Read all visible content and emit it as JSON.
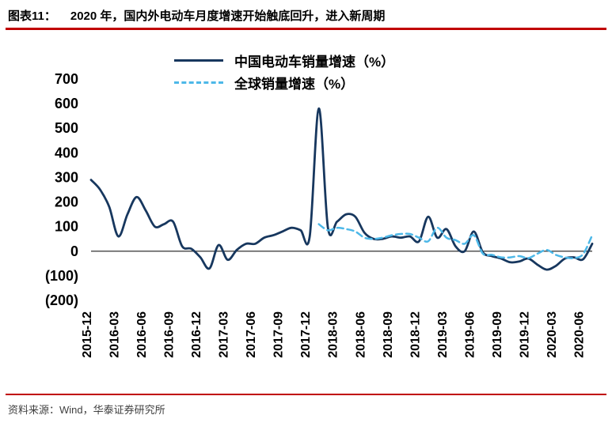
{
  "header": {
    "title_prefix": "图表11：",
    "title": "2020 年，国内外电动车月度增速开始触底回升，进入新周期"
  },
  "footer": {
    "source": "资料来源：Wind，华泰证券研究所"
  },
  "colors": {
    "rule_red": "#C00000",
    "china_line": "#17375E",
    "global_line": "#4DB8E8",
    "axis_line": "#1a1a1a",
    "text": "#000000"
  },
  "chart_data": {
    "type": "line",
    "title": "2020 年，国内外电动车月度增速开始触底回升，进入新周期",
    "xlabel": "",
    "ylabel": "",
    "ylim": [
      -200,
      700
    ],
    "yticks": [
      700,
      600,
      500,
      400,
      300,
      200,
      100,
      0,
      -100,
      -200
    ],
    "ytick_labels": [
      "700",
      "600",
      "500",
      "400",
      "300",
      "200",
      "100",
      "0",
      "(100)",
      "(200)"
    ],
    "xtick_interval": 3,
    "grid": false,
    "legend_position": "top",
    "x": [
      "2015-12",
      "2016-01",
      "2016-02",
      "2016-03",
      "2016-04",
      "2016-05",
      "2016-06",
      "2016-07",
      "2016-08",
      "2016-09",
      "2016-10",
      "2016-11",
      "2016-12",
      "2017-01",
      "2017-02",
      "2017-03",
      "2017-04",
      "2017-05",
      "2017-06",
      "2017-07",
      "2017-08",
      "2017-09",
      "2017-10",
      "2017-11",
      "2017-12",
      "2018-01",
      "2018-02",
      "2018-03",
      "2018-04",
      "2018-05",
      "2018-06",
      "2018-07",
      "2018-08",
      "2018-09",
      "2018-10",
      "2018-11",
      "2018-12",
      "2019-01",
      "2019-02",
      "2019-03",
      "2019-04",
      "2019-05",
      "2019-06",
      "2019-07",
      "2019-08",
      "2019-09",
      "2019-10",
      "2019-11",
      "2019-12",
      "2020-01",
      "2020-02",
      "2020-03",
      "2020-04",
      "2020-05",
      "2020-06",
      "2020-07"
    ],
    "series": [
      {
        "name": "中国电动车销量增速（%）",
        "style": "solid",
        "color": "#17375E",
        "width": 2.8,
        "dash": null,
        "values": [
          290,
          250,
          180,
          60,
          150,
          220,
          165,
          100,
          110,
          120,
          20,
          10,
          -25,
          -70,
          25,
          -35,
          5,
          30,
          30,
          55,
          65,
          80,
          95,
          85,
          60,
          580,
          95,
          120,
          150,
          140,
          75,
          50,
          50,
          60,
          55,
          60,
          40,
          140,
          55,
          90,
          20,
          0,
          80,
          -5,
          -20,
          -30,
          -45,
          -42,
          -30,
          -55,
          -75,
          -60,
          -30,
          -25,
          -33,
          30
        ]
      },
      {
        "name": "全球销量增速（%）",
        "style": "dashed",
        "color": "#4DB8E8",
        "width": 2.5,
        "dash": "8 5",
        "values": [
          null,
          null,
          null,
          null,
          null,
          null,
          null,
          null,
          null,
          null,
          null,
          null,
          null,
          null,
          null,
          null,
          null,
          null,
          null,
          null,
          null,
          null,
          null,
          null,
          null,
          110,
          85,
          95,
          90,
          80,
          55,
          50,
          55,
          65,
          70,
          70,
          55,
          40,
          95,
          55,
          45,
          30,
          65,
          -10,
          -15,
          -25,
          -25,
          -20,
          -28,
          -10,
          5,
          -15,
          -25,
          -28,
          -12,
          65
        ]
      }
    ]
  }
}
